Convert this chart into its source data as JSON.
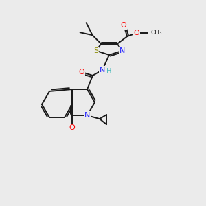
{
  "background_color": "#ebebeb",
  "bond_color": "#1a1a1a",
  "atom_colors": {
    "N": "#2020ff",
    "O": "#ff0000",
    "S": "#8b8b00",
    "C": "#1a1a1a",
    "H": "#4dbbbb"
  },
  "lw": 1.4,
  "fs": 8.0,
  "figsize": [
    3.0,
    3.0
  ],
  "dpi": 100
}
